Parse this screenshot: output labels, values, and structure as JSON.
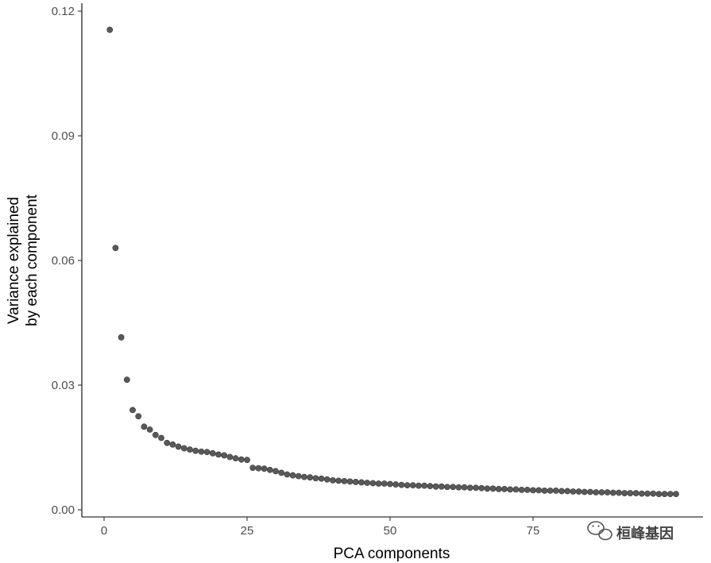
{
  "chart_data": {
    "type": "scatter",
    "xlabel": "PCA components",
    "ylabel": [
      "Variance explained",
      "by each component"
    ],
    "xlim": [
      0,
      100
    ],
    "ylim": [
      -0.002,
      0.121
    ],
    "xticks": [
      0,
      25,
      50,
      75
    ],
    "xtick_labels": [
      "0",
      "25",
      "50",
      "75"
    ],
    "yticks": [
      0.0,
      0.03,
      0.06,
      0.09,
      0.12
    ],
    "ytick_labels": [
      "0.00",
      "0.03",
      "0.06",
      "0.09",
      "0.12"
    ],
    "grid": false,
    "legend": false,
    "point_color": "#595959",
    "x": [
      1,
      2,
      3,
      4,
      5,
      6,
      7,
      8,
      9,
      10,
      11,
      12,
      13,
      14,
      15,
      16,
      17,
      18,
      19,
      20,
      21,
      22,
      23,
      24,
      25,
      26,
      27,
      28,
      29,
      30,
      31,
      32,
      33,
      34,
      35,
      36,
      37,
      38,
      39,
      40,
      41,
      42,
      43,
      44,
      45,
      46,
      47,
      48,
      49,
      50,
      51,
      52,
      53,
      54,
      55,
      56,
      57,
      58,
      59,
      60,
      61,
      62,
      63,
      64,
      65,
      66,
      67,
      68,
      69,
      70,
      71,
      72,
      73,
      74,
      75,
      76,
      77,
      78,
      79,
      80,
      81,
      82,
      83,
      84,
      85,
      86,
      87,
      88,
      89,
      90,
      91,
      92,
      93,
      94,
      95,
      96,
      97,
      98,
      99,
      100
    ],
    "y": [
      0.1155,
      0.063,
      0.0415,
      0.0313,
      0.024,
      0.0225,
      0.02,
      0.0193,
      0.018,
      0.0173,
      0.0161,
      0.0157,
      0.0152,
      0.0148,
      0.0145,
      0.0142,
      0.014,
      0.0139,
      0.0136,
      0.0133,
      0.0131,
      0.0127,
      0.0124,
      0.0121,
      0.012,
      0.0101,
      0.01,
      0.0099,
      0.0096,
      0.0093,
      0.0089,
      0.0085,
      0.0083,
      0.0081,
      0.0079,
      0.0078,
      0.0076,
      0.0075,
      0.0073,
      0.0071,
      0.007,
      0.0069,
      0.0068,
      0.0067,
      0.0066,
      0.0065,
      0.0064,
      0.0063,
      0.0063,
      0.0062,
      0.0061,
      0.006,
      0.0059,
      0.0059,
      0.0058,
      0.0058,
      0.0057,
      0.0056,
      0.0056,
      0.0055,
      0.0055,
      0.0054,
      0.0054,
      0.0053,
      0.0053,
      0.0052,
      0.0051,
      0.0051,
      0.005,
      0.005,
      0.0049,
      0.0049,
      0.0048,
      0.0048,
      0.0047,
      0.0047,
      0.0046,
      0.0046,
      0.0046,
      0.0045,
      0.0045,
      0.0044,
      0.0044,
      0.0043,
      0.0043,
      0.0042,
      0.0042,
      0.0042,
      0.0041,
      0.0041,
      0.004,
      0.004,
      0.004,
      0.0039,
      0.0039,
      0.0039,
      0.0038,
      0.0038,
      0.0038,
      0.0038
    ]
  },
  "watermark": {
    "text": "桓峰基因",
    "icon": "wechat-icon"
  }
}
